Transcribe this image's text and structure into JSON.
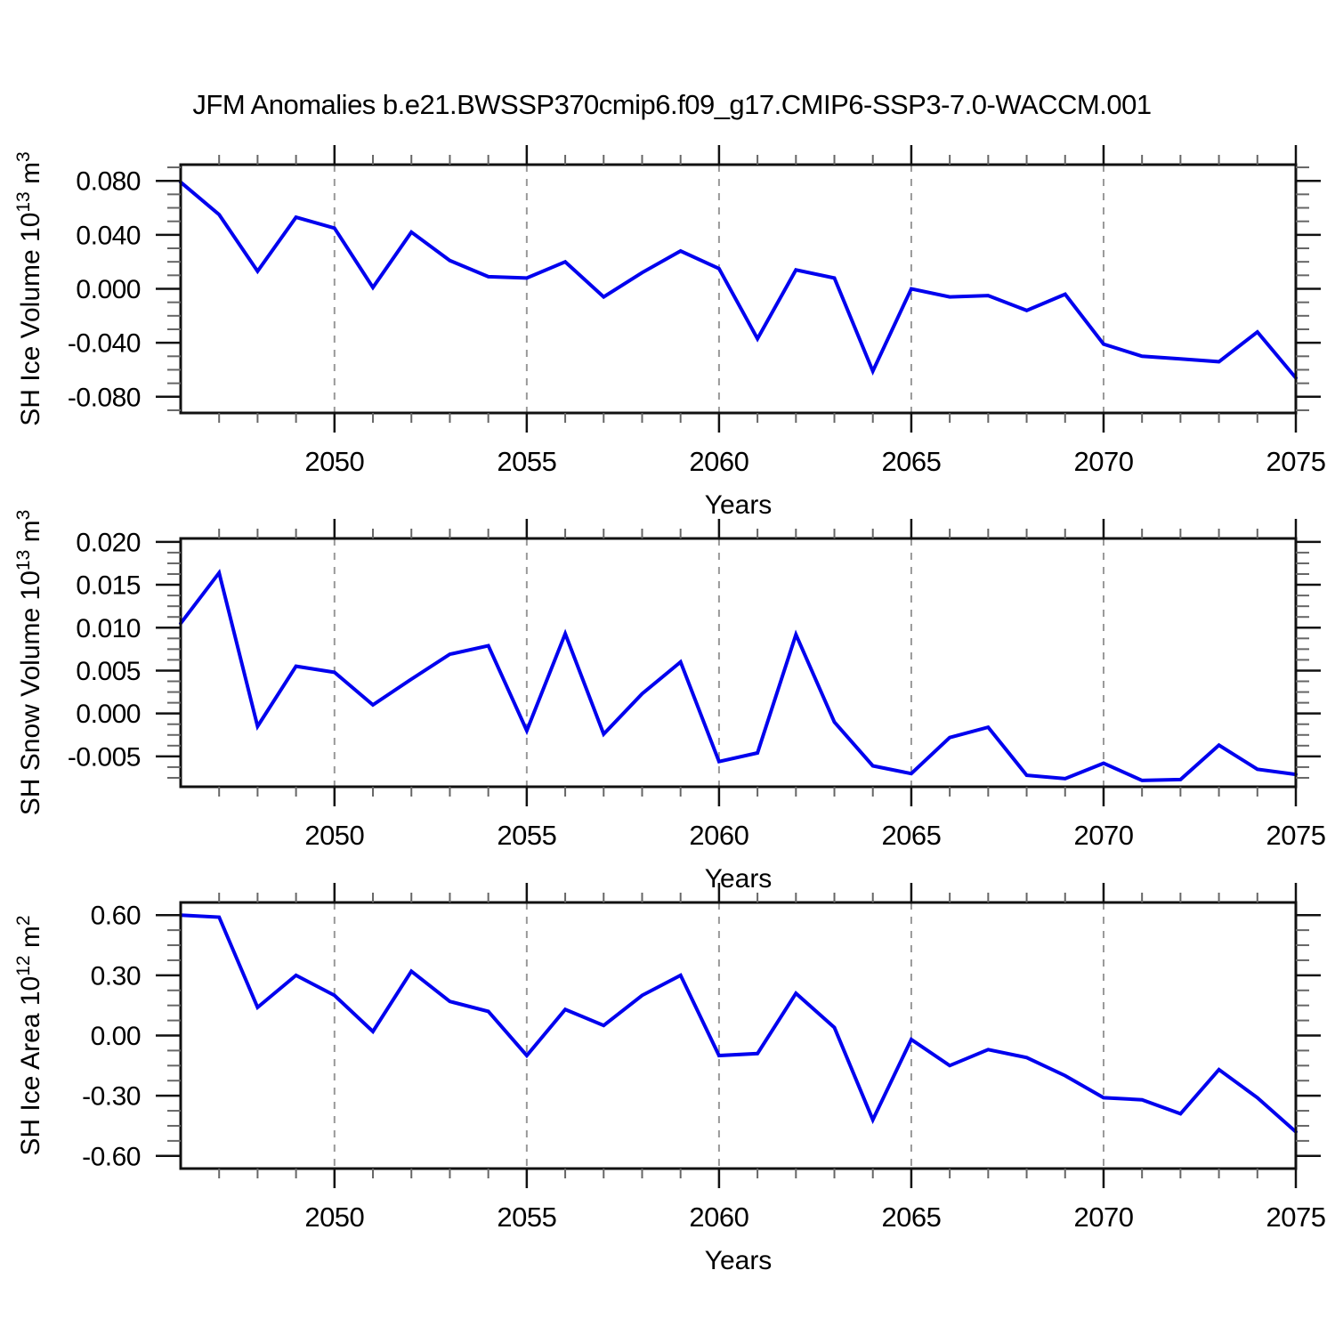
{
  "title": "JFM Anomalies b.e21.BWSSP370cmip6.f09_g17.CMIP6-SSP3-7.0-WACCM.001",
  "line_color": "#0000ee",
  "grid_color": "#999999",
  "axis_color": "#111111",
  "minor_tick_color": "#666666",
  "x_range": [
    2046,
    2075
  ],
  "x_major_ticks": [
    2050,
    2055,
    2060,
    2065,
    2070,
    2075
  ],
  "x_minor_step": 1,
  "years": [
    2046,
    2047,
    2048,
    2049,
    2050,
    2051,
    2052,
    2053,
    2054,
    2055,
    2056,
    2057,
    2058,
    2059,
    2060,
    2061,
    2062,
    2063,
    2064,
    2065,
    2066,
    2067,
    2068,
    2069,
    2070,
    2071,
    2072,
    2073,
    2074,
    2075
  ],
  "chart_data": [
    {
      "type": "line",
      "name": "sh-ice-volume",
      "ylabel": "SH Ice Volume 10^13 m^3",
      "xlabel": "Years",
      "ylim": [
        -0.092,
        0.092
      ],
      "y_major_step": 0.04,
      "y_minor_step": 0.01,
      "y_tick_labels": [
        "0.080",
        "0.040",
        "0.000",
        "-0.040",
        "-0.080"
      ],
      "grid": "vertical-dashed",
      "values": [
        0.079,
        0.055,
        0.013,
        0.053,
        0.045,
        0.001,
        0.042,
        0.021,
        0.009,
        0.008,
        0.02,
        -0.006,
        0.012,
        0.028,
        0.015,
        -0.037,
        0.014,
        0.008,
        -0.061,
        0.0,
        -0.006,
        -0.005,
        -0.016,
        -0.004,
        -0.041,
        -0.05,
        -0.052,
        -0.054,
        -0.032,
        -0.066
      ]
    },
    {
      "type": "line",
      "name": "sh-snow-volume",
      "ylabel": "SH Snow Volume 10^13 m^3",
      "xlabel": "Years",
      "ylim": [
        -0.00854,
        0.0204
      ],
      "y_major_step": 0.005,
      "y_minor_step": 0.00125,
      "y_tick_labels": [
        "0.020",
        "0.015",
        "0.010",
        "0.005",
        "0.000",
        "-0.005"
      ],
      "grid": "vertical-dashed",
      "values": [
        0.0105,
        0.0164,
        -0.0015,
        0.0055,
        0.0048,
        0.001,
        0.004,
        0.0069,
        0.0079,
        -0.002,
        0.0093,
        -0.0024,
        0.0023,
        0.006,
        -0.0056,
        -0.0046,
        0.0092,
        -0.001,
        -0.0061,
        -0.007,
        -0.0028,
        -0.0016,
        -0.0072,
        -0.0076,
        -0.0058,
        -0.0078,
        -0.0077,
        -0.0037,
        -0.0065,
        -0.0071
      ]
    },
    {
      "type": "line",
      "name": "sh-ice-area",
      "ylabel": "SH Ice Area 10^12 m^2",
      "xlabel": "Years",
      "ylim": [
        -0.663,
        0.663
      ],
      "y_major_step": 0.3,
      "y_minor_step": 0.075,
      "y_tick_labels": [
        "0.60",
        "0.30",
        "0.00",
        "-0.30",
        "-0.60"
      ],
      "grid": "vertical-dashed",
      "values": [
        0.6,
        0.59,
        0.14,
        0.3,
        0.2,
        0.02,
        0.32,
        0.17,
        0.12,
        -0.1,
        0.13,
        0.05,
        0.2,
        0.3,
        -0.1,
        -0.09,
        0.21,
        0.04,
        -0.42,
        -0.02,
        -0.15,
        -0.07,
        -0.11,
        -0.2,
        -0.31,
        -0.32,
        -0.39,
        -0.17,
        -0.31,
        -0.48
      ]
    }
  ]
}
